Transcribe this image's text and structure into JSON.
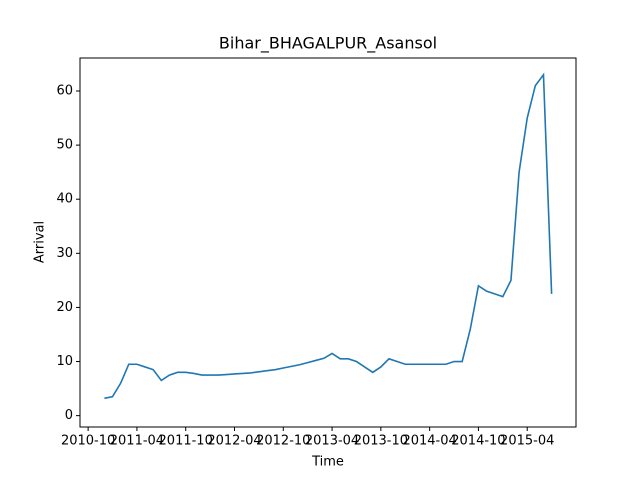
{
  "chart_data": {
    "type": "line",
    "title": "Bihar_BHAGALPUR_Asansol",
    "x_label": "Time",
    "y_label": "Arrival",
    "x": [
      "2010-12",
      "2011-01",
      "2011-02",
      "2011-03",
      "2011-04",
      "2011-05",
      "2011-06",
      "2011-07",
      "2011-08",
      "2011-09",
      "2011-10",
      "2011-11",
      "2011-12",
      "2012-01",
      "2012-02",
      "2012-03",
      "2012-04",
      "2012-05",
      "2012-06",
      "2012-07",
      "2012-08",
      "2012-09",
      "2012-10",
      "2012-11",
      "2012-12",
      "2013-01",
      "2013-02",
      "2013-03",
      "2013-04",
      "2013-05",
      "2013-06",
      "2013-07",
      "2013-08",
      "2013-09",
      "2013-10",
      "2013-11",
      "2013-12",
      "2014-01",
      "2014-02",
      "2014-03",
      "2014-04",
      "2014-05",
      "2014-06",
      "2014-07",
      "2014-08",
      "2014-09",
      "2014-10",
      "2014-11",
      "2014-12",
      "2015-01",
      "2015-02",
      "2015-03",
      "2015-04",
      "2015-05",
      "2015-06",
      "2015-07"
    ],
    "series": [
      {
        "name": "Arrival",
        "color": "#1f77b4",
        "values": [
          3.2,
          3.5,
          6,
          9.5,
          9.5,
          9,
          8.5,
          6.5,
          7.5,
          8,
          8,
          7.8,
          7.5,
          7.5,
          7.5,
          7.6,
          7.7,
          7.8,
          7.9,
          8.1,
          8.3,
          8.5,
          8.8,
          9.1,
          9.4,
          9.8,
          10.2,
          10.6,
          11.5,
          10.5,
          10.5,
          10,
          9,
          8,
          9,
          10.5,
          10,
          9.5,
          9.5,
          9.5,
          9.5,
          9.5,
          9.5,
          10,
          10,
          16,
          24,
          23,
          22.5,
          22,
          25,
          45,
          55,
          61,
          63,
          22.5
        ]
      }
    ],
    "xlim": [
      "2010-09",
      "2015-10"
    ],
    "xticks": [
      "2010-10",
      "2011-04",
      "2011-10",
      "2012-04",
      "2012-10",
      "2013-04",
      "2013-10",
      "2014-04",
      "2014-10",
      "2015-04"
    ],
    "ylim": [
      -2.1,
      66.1
    ],
    "yticks": [
      0,
      10,
      20,
      30,
      40,
      50,
      60
    ],
    "grid": false
  }
}
